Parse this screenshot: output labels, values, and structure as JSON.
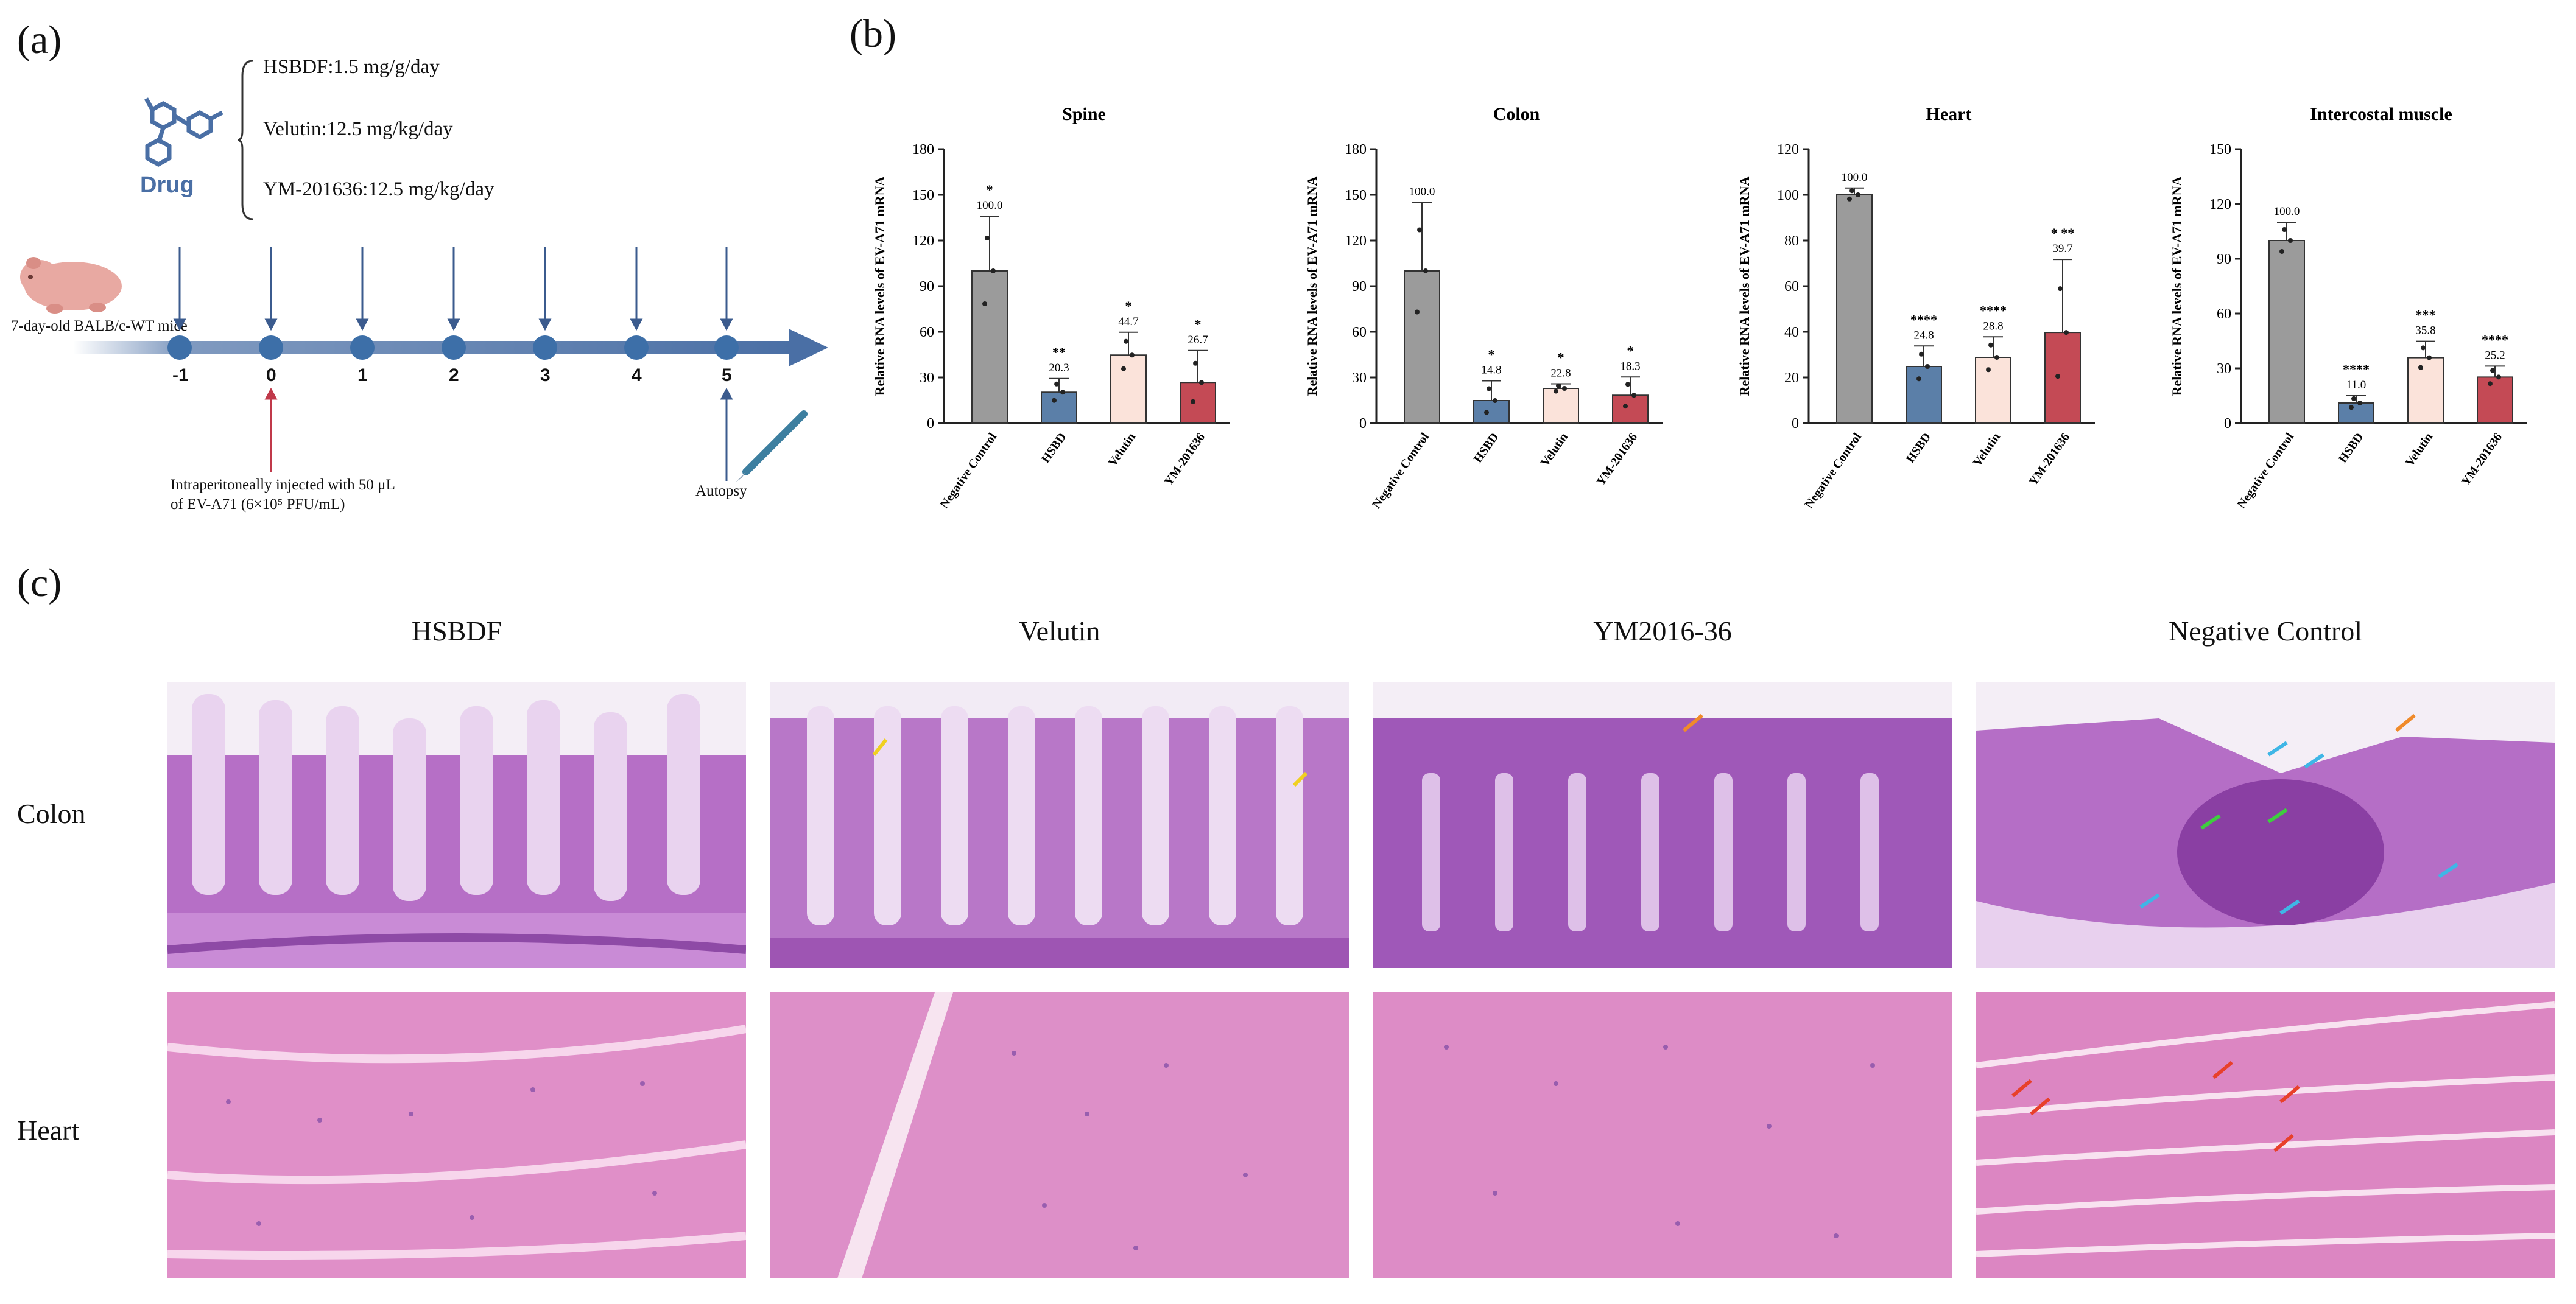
{
  "panels": {
    "a": "(a)",
    "b": "(b)",
    "c": "(c)"
  },
  "panel_a": {
    "drug_label": "Drug",
    "doses": [
      "HSBDF:1.5 mg/g/day",
      "Velutin:12.5 mg/kg/day",
      "YM-201636:12.5 mg/kg/day"
    ],
    "mouse_label": "7-day-old BALB/c-WT mice",
    "days": [
      "-1",
      "0",
      "1",
      "2",
      "3",
      "4",
      "5"
    ],
    "injection_text_1": "Intraperitoneally injected with 50 μL",
    "injection_text_2": "of EV-A71 (6×10⁵ PFU/mL)",
    "autopsy": "Autopsy",
    "colors": {
      "arrow_blue": "#3b5b8e",
      "arrow_red": "#c0394a",
      "timeline": "#4a6fa5",
      "dot": "#3d6fa8"
    }
  },
  "chart_data": [
    {
      "type": "bar",
      "title": "Spine",
      "ylabel": "Relative RNA levels of EV-A71 mRNA",
      "categories": [
        "Negative Control",
        "HSBD",
        "Velutin",
        "YM-201636"
      ],
      "values": [
        100.0,
        20.3,
        44.7,
        26.7
      ],
      "labels": [
        "100.0",
        "20.3",
        "44.7",
        "26.7"
      ],
      "errors": [
        36,
        9,
        15,
        21
      ],
      "sig": [
        "*",
        "**",
        "*",
        "*"
      ],
      "ylim": [
        0,
        180
      ],
      "ticks": [
        "0",
        "30",
        "60",
        "90",
        "120",
        "150",
        "180"
      ]
    },
    {
      "type": "bar",
      "title": "Colon",
      "ylabel": "Relative RNA levels of EV-A71 mRNA",
      "categories": [
        "Negative Control",
        "HSBD",
        "Velutin",
        "YM-201636"
      ],
      "values": [
        100.0,
        14.8,
        22.8,
        18.3
      ],
      "labels": [
        "100.0",
        "14.8",
        "22.8",
        "18.3"
      ],
      "errors": [
        45,
        13,
        3,
        12
      ],
      "sig": [
        "",
        "*",
        "*",
        "*"
      ],
      "ylim": [
        0,
        180
      ],
      "ticks": [
        "0",
        "30",
        "60",
        "90",
        "120",
        "150",
        "180"
      ]
    },
    {
      "type": "bar",
      "title": "Heart",
      "ylabel": "Relative RNA levels of EV-A71 mRNA",
      "categories": [
        "Negative Control",
        "HSBD",
        "Velutin",
        "YM-201636"
      ],
      "values": [
        100.0,
        24.8,
        28.8,
        39.7
      ],
      "labels": [
        "100.0",
        "24.8",
        "28.8",
        "39.7"
      ],
      "errors": [
        3,
        9,
        9,
        32
      ],
      "sig": [
        "",
        "****",
        "****",
        "* **"
      ],
      "ylim": [
        0,
        120
      ],
      "ticks": [
        "0",
        "20",
        "40",
        "60",
        "80",
        "100",
        "120"
      ]
    },
    {
      "type": "bar",
      "title": "Intercostal muscle",
      "ylabel": "Relative RNA levels of EV-A71 mRNA",
      "categories": [
        "Negative Control",
        "HSBD",
        "Velutin",
        "YM-201636"
      ],
      "values": [
        100.0,
        11.0,
        35.8,
        25.2
      ],
      "labels": [
        "100.0",
        "11.0",
        "35.8",
        "25.2"
      ],
      "errors": [
        10,
        4,
        9,
        6
      ],
      "sig": [
        "",
        "****",
        "***",
        "****"
      ],
      "ylim": [
        0,
        150
      ],
      "ticks": [
        "0",
        "30",
        "60",
        "90",
        "120",
        "150"
      ]
    }
  ],
  "bar_colors": [
    "#9b9b9b",
    "#5b7fa8",
    "#fbe3da",
    "#c44a55"
  ],
  "panel_c": {
    "columns": [
      "HSBDF",
      "Velutin",
      "YM2016-36",
      "Negative Control"
    ],
    "rows": [
      "Colon",
      "Heart"
    ]
  }
}
